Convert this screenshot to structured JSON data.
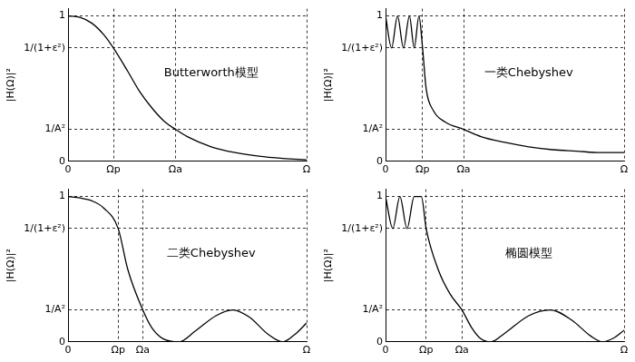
{
  "chart_data": [
    {
      "type": "line",
      "title": "Butterworth模型",
      "y_label": "|H(Ω)|²",
      "color": "#000000",
      "grid": true,
      "x": [
        0,
        0.5,
        1,
        1.5,
        1.9,
        2.5,
        3,
        3.5,
        4,
        4.5,
        5,
        6,
        7,
        8,
        9,
        10
      ],
      "values": [
        1,
        0.99,
        0.95,
        0.87,
        0.78,
        0.62,
        0.48,
        0.37,
        0.28,
        0.22,
        0.17,
        0.1,
        0.06,
        0.035,
        0.02,
        0.01
      ],
      "xlim": [
        0,
        10
      ],
      "xticks": [
        0,
        {
          "value": 1.9,
          "label": "Ωp"
        },
        {
          "value": 4.5,
          "label": "Ωa"
        },
        {
          "value": 10,
          "label": "Ω"
        }
      ],
      "ylim": [
        0,
        1.05
      ],
      "yticks": [
        0,
        {
          "value": 0.22,
          "label": "1/A²"
        },
        {
          "value": 0.78,
          "label": "1/(1+ε²)"
        },
        1
      ]
    },
    {
      "type": "line",
      "title": "一类Chebyshev",
      "y_label": "|H(Ω)|²",
      "color": "#000000",
      "grid": true,
      "x": [
        0,
        0.25,
        0.5,
        0.75,
        1.0,
        1.2,
        1.4,
        1.55,
        1.7,
        2.0,
        2.5,
        3.27,
        4,
        5,
        6,
        7,
        8,
        9,
        10
      ],
      "values": [
        1,
        0.78,
        1,
        0.78,
        1,
        0.78,
        1,
        0.78,
        0.5,
        0.35,
        0.27,
        0.22,
        0.17,
        0.13,
        0.1,
        0.08,
        0.07,
        0.06,
        0.06
      ],
      "xlim": [
        0,
        10
      ],
      "xticks": [
        0,
        {
          "value": 1.55,
          "label": "Ωp"
        },
        {
          "value": 3.27,
          "label": "Ωa"
        },
        {
          "value": 10,
          "label": "Ω"
        }
      ],
      "ylim": [
        0,
        1.05
      ],
      "yticks": [
        0,
        {
          "value": 0.22,
          "label": "1/A²"
        },
        {
          "value": 0.78,
          "label": "1/(1+ε²)"
        },
        1
      ]
    },
    {
      "type": "line",
      "title": "二类Chebyshev",
      "y_label": "|H(Ω)|²",
      "color": "#000000",
      "grid": true,
      "x": [
        0,
        0.5,
        1,
        1.5,
        2.1,
        2.5,
        3.13,
        3.5,
        4.0,
        4.65,
        5.3,
        6.2,
        6.9,
        7.6,
        8.4,
        9.0,
        9.5,
        10
      ],
      "values": [
        1,
        0.99,
        0.97,
        0.92,
        0.78,
        0.5,
        0.22,
        0.1,
        0.02,
        0,
        0.07,
        0.18,
        0.22,
        0.17,
        0.05,
        0,
        0.05,
        0.13
      ],
      "xlim": [
        0,
        10
      ],
      "xticks": [
        0,
        {
          "value": 2.1,
          "label": "Ωp"
        },
        {
          "value": 3.13,
          "label": "Ωa"
        },
        {
          "value": 10,
          "label": "Ω"
        }
      ],
      "ylim": [
        0,
        1.05
      ],
      "yticks": [
        0,
        {
          "value": 0.22,
          "label": "1/A²"
        },
        {
          "value": 0.78,
          "label": "1/(1+ε²)"
        },
        1
      ]
    },
    {
      "type": "line",
      "title": "椭圆模型",
      "y_label": "|H(Ω)|²",
      "color": "#000000",
      "grid": true,
      "x": [
        0,
        0.3,
        0.6,
        0.9,
        1.2,
        1.5,
        1.7,
        2.2,
        2.7,
        3.2,
        3.6,
        4.0,
        4.4,
        5.0,
        6.0,
        6.9,
        7.8,
        8.6,
        9.1,
        9.6,
        10
      ],
      "values": [
        1,
        0.78,
        1,
        0.78,
        1,
        1,
        0.78,
        0.5,
        0.33,
        0.22,
        0.1,
        0.02,
        0,
        0.06,
        0.18,
        0.22,
        0.15,
        0.04,
        0,
        0.03,
        0.08
      ],
      "xlim": [
        0,
        10
      ],
      "xticks": [
        0,
        {
          "value": 1.7,
          "label": "Ωp"
        },
        {
          "value": 3.2,
          "label": "Ωa"
        },
        {
          "value": 10,
          "label": "Ω"
        }
      ],
      "ylim": [
        0,
        1.05
      ],
      "yticks": [
        0,
        {
          "value": 0.22,
          "label": "1/A²"
        },
        {
          "value": 0.78,
          "label": "1/(1+ε²)"
        },
        1
      ]
    }
  ]
}
